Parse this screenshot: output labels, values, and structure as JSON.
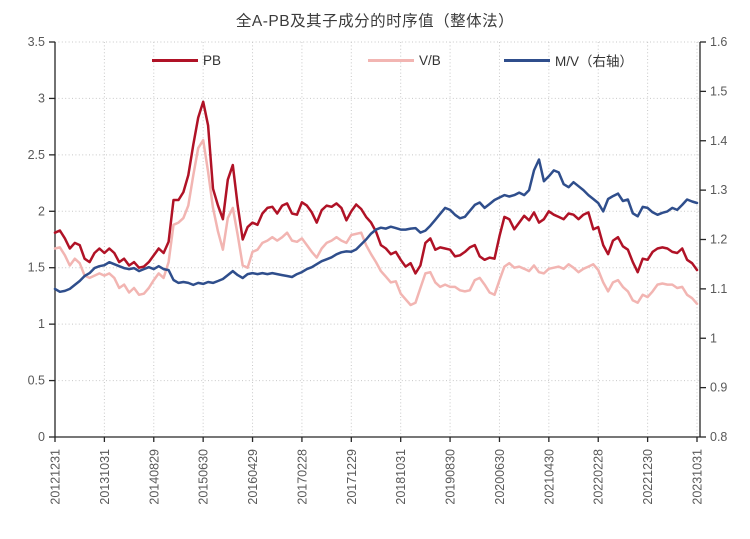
{
  "title": "全A-PB及其子成分的时序值（整体法）",
  "legend": [
    {
      "label": "PB",
      "color": "#b01226"
    },
    {
      "label": "V/B",
      "color": "#f2b5b2"
    },
    {
      "label": "M/V（右轴）",
      "color": "#2f4e8c"
    }
  ],
  "colors": {
    "axis_line": "#262626",
    "grid_line": "#c8c8c8",
    "tick_text": "#595959",
    "background": "#ffffff"
  },
  "chart_data": {
    "type": "line",
    "title": "全A-PB及其子成分的时序值（整体法）",
    "grid": "dotted",
    "legend_position": "top-inside",
    "x_frequency": "monthly",
    "x_tick_every": 10,
    "x_tick_labels": [
      "20121231",
      "20131031",
      "20140829",
      "20150630",
      "20160429",
      "20170228",
      "20171229",
      "20181031",
      "20190830",
      "20200630",
      "20210430",
      "20220228",
      "20221230",
      "20231031"
    ],
    "left_axis": {
      "min": 0,
      "max": 3.5,
      "tick_labels": [
        "0",
        "0.5",
        "1",
        "1.5",
        "2",
        "2.5",
        "3",
        "3.5"
      ]
    },
    "right_axis": {
      "min": 0.8,
      "max": 1.6,
      "tick_labels": [
        "0.8",
        "0.9",
        "1",
        "1.1",
        "1.2",
        "1.3",
        "1.4",
        "1.5",
        "1.6"
      ]
    },
    "series": [
      {
        "name": "PB",
        "axis": "left",
        "color": "#b01226",
        "values": [
          1.81,
          1.83,
          1.76,
          1.67,
          1.72,
          1.7,
          1.58,
          1.55,
          1.63,
          1.67,
          1.63,
          1.67,
          1.63,
          1.55,
          1.58,
          1.52,
          1.55,
          1.5,
          1.51,
          1.55,
          1.61,
          1.67,
          1.63,
          1.73,
          2.1,
          2.1,
          2.17,
          2.32,
          2.59,
          2.83,
          2.97,
          2.76,
          2.2,
          2.05,
          1.93,
          2.28,
          2.41,
          2.05,
          1.75,
          1.86,
          1.9,
          1.88,
          1.98,
          2.03,
          2.04,
          1.98,
          2.05,
          2.07,
          1.98,
          1.97,
          2.08,
          2.05,
          1.99,
          1.9,
          2.01,
          2.05,
          2.04,
          2.07,
          2.03,
          1.92,
          2.0,
          2.06,
          2.02,
          1.95,
          1.9,
          1.82,
          1.7,
          1.67,
          1.62,
          1.64,
          1.57,
          1.51,
          1.54,
          1.45,
          1.52,
          1.72,
          1.76,
          1.66,
          1.68,
          1.67,
          1.66,
          1.6,
          1.61,
          1.64,
          1.68,
          1.7,
          1.6,
          1.57,
          1.59,
          1.58,
          1.78,
          1.95,
          1.93,
          1.84,
          1.9,
          1.96,
          1.92,
          1.99,
          1.9,
          1.93,
          2.0,
          1.97,
          1.95,
          1.93,
          1.98,
          1.97,
          1.93,
          1.97,
          1.99,
          1.84,
          1.86,
          1.7,
          1.62,
          1.74,
          1.77,
          1.69,
          1.66,
          1.55,
          1.46,
          1.58,
          1.57,
          1.64,
          1.67,
          1.68,
          1.67,
          1.64,
          1.63,
          1.67,
          1.57,
          1.54,
          1.48
        ]
      },
      {
        "name": "V/B",
        "axis": "left",
        "color": "#f2b5b2",
        "values": [
          1.67,
          1.68,
          1.61,
          1.52,
          1.58,
          1.54,
          1.43,
          1.41,
          1.43,
          1.45,
          1.43,
          1.45,
          1.41,
          1.32,
          1.35,
          1.28,
          1.32,
          1.26,
          1.27,
          1.32,
          1.39,
          1.45,
          1.41,
          1.55,
          1.88,
          1.9,
          1.94,
          2.05,
          2.32,
          2.56,
          2.63,
          2.35,
          2.03,
          1.82,
          1.66,
          1.94,
          2.03,
          1.79,
          1.52,
          1.5,
          1.64,
          1.66,
          1.72,
          1.74,
          1.77,
          1.74,
          1.77,
          1.81,
          1.74,
          1.73,
          1.76,
          1.7,
          1.64,
          1.59,
          1.67,
          1.72,
          1.74,
          1.77,
          1.74,
          1.72,
          1.79,
          1.8,
          1.81,
          1.7,
          1.62,
          1.55,
          1.47,
          1.42,
          1.37,
          1.38,
          1.27,
          1.22,
          1.17,
          1.19,
          1.32,
          1.45,
          1.46,
          1.37,
          1.33,
          1.35,
          1.33,
          1.33,
          1.3,
          1.29,
          1.3,
          1.39,
          1.41,
          1.35,
          1.28,
          1.26,
          1.39,
          1.51,
          1.54,
          1.5,
          1.51,
          1.49,
          1.47,
          1.52,
          1.46,
          1.45,
          1.49,
          1.5,
          1.51,
          1.49,
          1.53,
          1.5,
          1.46,
          1.49,
          1.51,
          1.53,
          1.48,
          1.37,
          1.29,
          1.37,
          1.39,
          1.33,
          1.29,
          1.21,
          1.19,
          1.26,
          1.24,
          1.29,
          1.35,
          1.36,
          1.35,
          1.35,
          1.32,
          1.33,
          1.26,
          1.23,
          1.18
        ]
      },
      {
        "name": "M/V（右轴）",
        "axis": "right",
        "color": "#2f4e8c",
        "values": [
          1.1,
          1.094,
          1.096,
          1.1,
          1.108,
          1.116,
          1.126,
          1.132,
          1.142,
          1.146,
          1.148,
          1.154,
          1.15,
          1.146,
          1.142,
          1.14,
          1.142,
          1.136,
          1.14,
          1.144,
          1.14,
          1.146,
          1.14,
          1.138,
          1.118,
          1.112,
          1.114,
          1.112,
          1.108,
          1.112,
          1.11,
          1.114,
          1.112,
          1.116,
          1.12,
          1.128,
          1.136,
          1.128,
          1.122,
          1.13,
          1.132,
          1.13,
          1.132,
          1.13,
          1.132,
          1.13,
          1.128,
          1.126,
          1.124,
          1.13,
          1.134,
          1.14,
          1.144,
          1.15,
          1.156,
          1.16,
          1.164,
          1.17,
          1.174,
          1.176,
          1.175,
          1.18,
          1.19,
          1.2,
          1.212,
          1.22,
          1.224,
          1.222,
          1.226,
          1.223,
          1.22,
          1.22,
          1.222,
          1.223,
          1.214,
          1.218,
          1.228,
          1.24,
          1.252,
          1.264,
          1.26,
          1.25,
          1.243,
          1.246,
          1.258,
          1.27,
          1.275,
          1.264,
          1.272,
          1.28,
          1.285,
          1.29,
          1.287,
          1.29,
          1.295,
          1.29,
          1.3,
          1.34,
          1.362,
          1.318,
          1.328,
          1.34,
          1.336,
          1.312,
          1.306,
          1.316,
          1.308,
          1.3,
          1.29,
          1.282,
          1.274,
          1.257,
          1.282,
          1.288,
          1.293,
          1.278,
          1.281,
          1.253,
          1.247,
          1.266,
          1.264,
          1.255,
          1.25,
          1.254,
          1.257,
          1.264,
          1.26,
          1.27,
          1.281,
          1.277,
          1.274
        ]
      }
    ]
  }
}
